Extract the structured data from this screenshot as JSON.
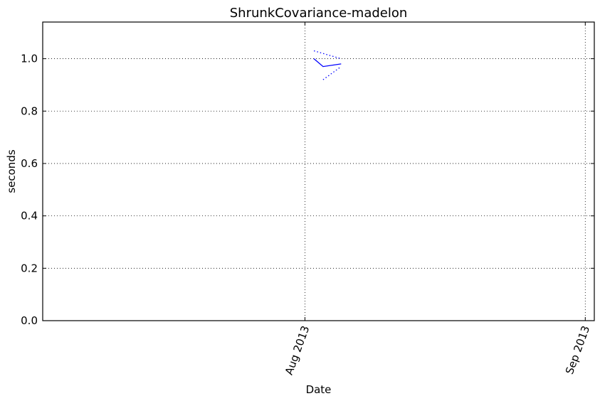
{
  "chart_data": {
    "type": "line",
    "title": "ShrunkCovariance-madelon",
    "xlabel": "Date",
    "ylabel": "seconds",
    "ylim": [
      0,
      1.14
    ],
    "xlim": [
      "2013-07-03",
      "2013-09-02"
    ],
    "x_ticks": [
      {
        "date": "2013-08-01",
        "label": "Aug 2013"
      },
      {
        "date": "2013-09-01",
        "label": "Sep 2013"
      }
    ],
    "y_ticks": [
      0.0,
      0.2,
      0.4,
      0.6,
      0.8,
      1.0
    ],
    "y_tick_labels": [
      "0.0",
      "0.2",
      "0.4",
      "0.6",
      "0.8",
      "1.0"
    ],
    "grid": true,
    "series": [
      {
        "style": "solid",
        "color": "#0000ff",
        "points": [
          {
            "x": "2013-08-02",
            "y": 1.0
          },
          {
            "x": "2013-08-03",
            "y": 0.97
          },
          {
            "x": "2013-08-05",
            "y": 0.98
          }
        ]
      },
      {
        "style": "dotted",
        "color": "#0000ff",
        "points": [
          {
            "x": "2013-08-02",
            "y": 1.03
          },
          {
            "x": "2013-08-05",
            "y": 1.0
          }
        ]
      },
      {
        "style": "dotted",
        "color": "#0000ff",
        "points": [
          {
            "x": "2013-08-03",
            "y": 0.92
          },
          {
            "x": "2013-08-05",
            "y": 0.97
          }
        ]
      }
    ]
  }
}
